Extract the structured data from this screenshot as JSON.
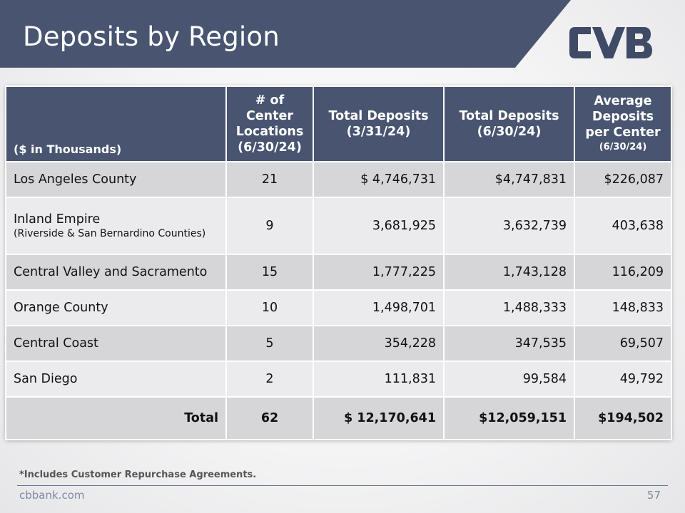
{
  "slide": {
    "title": "Deposits by Region",
    "footnote": "*Includes Customer Repurchase Agreements.",
    "website": "cbbank.com",
    "page_number": "57"
  },
  "logo": {
    "name": "cvb-logo-icon",
    "color": "#3e4a66"
  },
  "colors": {
    "header_bg": "#485470",
    "row_dark": "#d6d6d9",
    "row_light": "#ebebee",
    "title_band": "#485470"
  },
  "table": {
    "headers": {
      "region": "($ in Thousands)",
      "locations": "# of Center Locations (6/30/24)",
      "deposits_q1": "Total Deposits (3/31/24)",
      "deposits_q2": "Total Deposits (6/30/24)",
      "avg_main": "Average Deposits per Center",
      "avg_sub": "(6/30/24)"
    },
    "rows": [
      {
        "region": "Los Angeles County",
        "sub": "",
        "locations": "21",
        "deposits_q1": "$  4,746,731",
        "deposits_q2": "$4,747,831",
        "avg": "$226,087"
      },
      {
        "region": "Inland Empire",
        "sub": "(Riverside & San Bernardino Counties)",
        "locations": "9",
        "deposits_q1": "3,681,925",
        "deposits_q2": "3,632,739",
        "avg": "403,638"
      },
      {
        "region": "Central Valley and Sacramento",
        "sub": "",
        "locations": "15",
        "deposits_q1": "1,777,225",
        "deposits_q2": "1,743,128",
        "avg": "116,209"
      },
      {
        "region": "Orange County",
        "sub": "",
        "locations": "10",
        "deposits_q1": "1,498,701",
        "deposits_q2": "1,488,333",
        "avg": "148,833"
      },
      {
        "region": "Central Coast",
        "sub": "",
        "locations": "5",
        "deposits_q1": "354,228",
        "deposits_q2": "347,535",
        "avg": "69,507"
      },
      {
        "region": "San Diego",
        "sub": "",
        "locations": "2",
        "deposits_q1": "111,831",
        "deposits_q2": "99,584",
        "avg": "49,792"
      }
    ],
    "total": {
      "label": "Total",
      "locations": "62",
      "deposits_q1": "$ 12,170,641",
      "deposits_q2": "$12,059,151",
      "avg": "$194,502"
    }
  }
}
